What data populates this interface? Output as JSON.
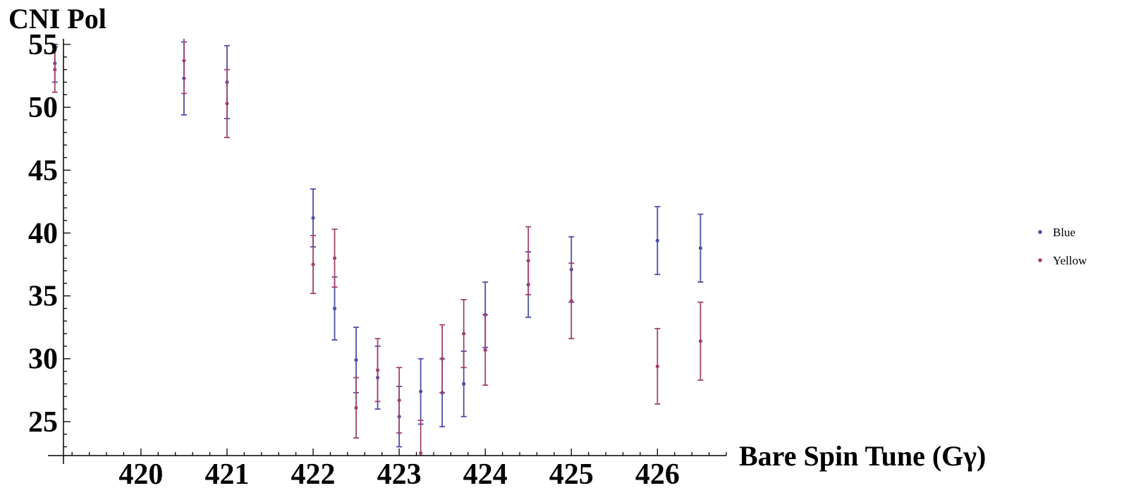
{
  "chart_data": {
    "type": "scatter",
    "title": "",
    "xlabel": "Bare Spin Tune (Gγ)",
    "ylabel": "CNI Pol",
    "xlim": [
      419.1,
      426.8
    ],
    "ylim": [
      22.3,
      55
    ],
    "xticks": [
      420,
      421,
      422,
      423,
      424,
      425,
      426
    ],
    "yticks": [
      25,
      30,
      35,
      40,
      45,
      50,
      55
    ],
    "error_bars": true,
    "grid": false,
    "legend_position": "right",
    "series": [
      {
        "name": "Blue",
        "color": "#4b4fa5",
        "points": [
          {
            "x": 419.0,
            "y": 53.5,
            "err": 1.5
          },
          {
            "x": 420.5,
            "y": 52.3,
            "err": 2.9
          },
          {
            "x": 421.0,
            "y": 52.0,
            "err": 2.9
          },
          {
            "x": 422.0,
            "y": 41.2,
            "err": 2.3
          },
          {
            "x": 422.25,
            "y": 34.0,
            "err": 2.5
          },
          {
            "x": 422.5,
            "y": 29.9,
            "err": 2.6
          },
          {
            "x": 422.75,
            "y": 28.5,
            "err": 2.5
          },
          {
            "x": 423.0,
            "y": 25.4,
            "err": 2.4
          },
          {
            "x": 423.25,
            "y": 27.4,
            "err": 2.6
          },
          {
            "x": 423.5,
            "y": 27.3,
            "err": 2.7
          },
          {
            "x": 423.75,
            "y": 28.0,
            "err": 2.6
          },
          {
            "x": 424.0,
            "y": 33.5,
            "err": 2.6
          },
          {
            "x": 424.5,
            "y": 35.9,
            "err": 2.6
          },
          {
            "x": 425.0,
            "y": 37.1,
            "err": 2.6
          },
          {
            "x": 426.0,
            "y": 39.4,
            "err": 2.7
          },
          {
            "x": 426.5,
            "y": 38.8,
            "err": 2.7
          }
        ]
      },
      {
        "name": "Yellow",
        "color": "#a2416f",
        "points": [
          {
            "x": 419.0,
            "y": 53.0,
            "err": 1.8
          },
          {
            "x": 420.5,
            "y": 53.7,
            "err": 2.6
          },
          {
            "x": 421.0,
            "y": 50.3,
            "err": 2.7
          },
          {
            "x": 422.0,
            "y": 37.5,
            "err": 2.3
          },
          {
            "x": 422.25,
            "y": 38.0,
            "err": 2.3
          },
          {
            "x": 422.5,
            "y": 26.1,
            "err": 2.4
          },
          {
            "x": 422.75,
            "y": 29.1,
            "err": 2.5
          },
          {
            "x": 423.0,
            "y": 26.7,
            "err": 2.6
          },
          {
            "x": 423.25,
            "y": 22.5,
            "err": 2.6
          },
          {
            "x": 423.5,
            "y": 30.0,
            "err": 2.7
          },
          {
            "x": 423.75,
            "y": 32.0,
            "err": 2.7
          },
          {
            "x": 424.0,
            "y": 30.7,
            "err": 2.8
          },
          {
            "x": 424.5,
            "y": 37.8,
            "err": 2.7
          },
          {
            "x": 425.0,
            "y": 34.6,
            "err": 3.0
          },
          {
            "x": 426.0,
            "y": 29.4,
            "err": 3.0
          },
          {
            "x": 426.5,
            "y": 31.4,
            "err": 3.1
          }
        ]
      }
    ]
  }
}
